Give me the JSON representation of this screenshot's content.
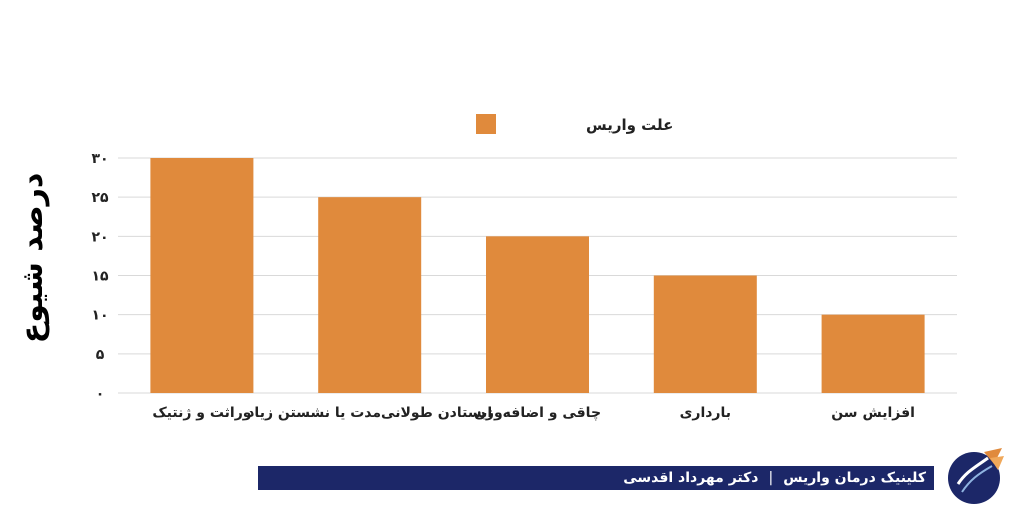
{
  "chart_data": {
    "type": "bar",
    "legend": {
      "label": "علت واریس",
      "position": "top-center"
    },
    "ylabel": "درصد شیوع",
    "ylim": [
      0,
      30
    ],
    "yticks": [
      0,
      5,
      10,
      15,
      20,
      25,
      30
    ],
    "ytick_labels": [
      "۰",
      "۵",
      "۱۰",
      "۱۵",
      "۲۰",
      "۲۵",
      "۳۰"
    ],
    "categories": [
      "وراثت و ژنتیک",
      "ایستادن طولانی‌مدت یا نشستن زیاد",
      "چاقی و اضافه‌وزن",
      "بارداری",
      "افزایش سن"
    ],
    "values": [
      30,
      25,
      20,
      15,
      10
    ],
    "bar_color": "#e08a3c",
    "grid": true
  },
  "footer": {
    "clinic": "کلینیک درمان واریس",
    "separator": "|",
    "doctor": "دکتر مهرداد اقدسی",
    "bar_color": "#1c2768"
  },
  "logo": {
    "icon": "clinic-logo-icon"
  }
}
